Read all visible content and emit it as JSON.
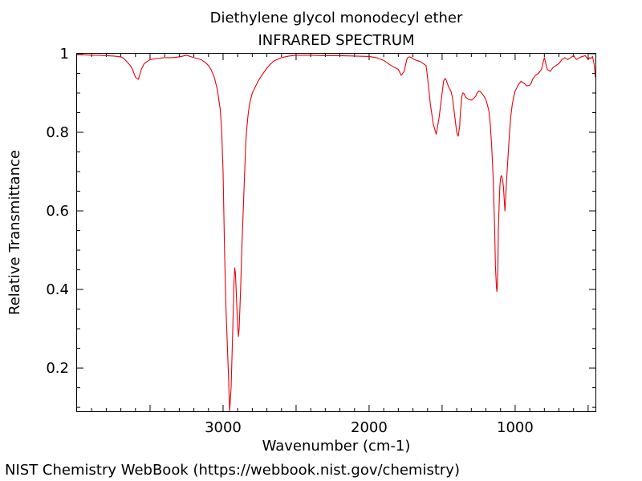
{
  "footer": "NIST Chemistry WebBook (https://webbook.nist.gov/chemistry)",
  "chart_data": {
    "type": "line",
    "title": "Diethylene glycol monodecyl ether",
    "subtitle": "INFRARED SPECTRUM",
    "xlabel": "Wavenumber (cm-1)",
    "ylabel": "Relative Transmittance",
    "xlim": [
      4000,
      450
    ],
    "ylim": [
      0.09,
      1.0
    ],
    "x_reversed": true,
    "x_ticks": [
      3000,
      2000,
      1000
    ],
    "y_ticks": [
      0.2,
      0.4,
      0.6,
      0.8,
      1
    ],
    "y_tick_labels": [
      "0.2",
      "0.4",
      "0.6",
      "0.8",
      "1"
    ],
    "grid": false,
    "line_color": "#e8000b",
    "series": [
      {
        "x": [
          4000,
          3950,
          3900,
          3850,
          3800,
          3750,
          3720,
          3700,
          3680,
          3660,
          3640,
          3620,
          3600,
          3580,
          3560,
          3540,
          3500,
          3450,
          3400,
          3350,
          3300,
          3250,
          3200,
          3150,
          3120,
          3100,
          3080,
          3060,
          3040,
          3020,
          3010,
          3000,
          2990,
          2980,
          2970,
          2962,
          2955,
          2945,
          2935,
          2925,
          2920,
          2915,
          2905,
          2900,
          2895,
          2890,
          2880,
          2870,
          2860,
          2855,
          2850,
          2845,
          2840,
          2830,
          2820,
          2800,
          2780,
          2760,
          2740,
          2720,
          2700,
          2680,
          2650,
          2600,
          2550,
          2500,
          2400,
          2300,
          2200,
          2100,
          2000,
          1950,
          1900,
          1850,
          1800,
          1780,
          1760,
          1745,
          1740,
          1735,
          1725,
          1710,
          1690,
          1650,
          1610,
          1600,
          1580,
          1560,
          1540,
          1520,
          1500,
          1490,
          1480,
          1475,
          1470,
          1465,
          1455,
          1440,
          1430,
          1420,
          1410,
          1400,
          1390,
          1380,
          1375,
          1370,
          1365,
          1360,
          1355,
          1350,
          1340,
          1320,
          1300,
          1290,
          1280,
          1270,
          1260,
          1250,
          1240,
          1230,
          1220,
          1210,
          1200,
          1190,
          1180,
          1170,
          1160,
          1150,
          1140,
          1135,
          1130,
          1128,
          1125,
          1122,
          1118,
          1115,
          1110,
          1105,
          1100,
          1095,
          1090,
          1085,
          1080,
          1075,
          1070,
          1065,
          1060,
          1050,
          1040,
          1030,
          1020,
          1010,
          1000,
          980,
          960,
          940,
          920,
          900,
          890,
          880,
          860,
          840,
          820,
          810,
          800,
          790,
          780,
          760,
          740,
          720,
          700,
          680,
          660,
          640,
          620,
          600,
          580,
          560,
          540,
          520,
          500,
          490,
          480,
          470,
          460,
          450
        ],
        "y": [
          0.997,
          0.997,
          0.996,
          0.996,
          0.995,
          0.994,
          0.993,
          0.992,
          0.988,
          0.98,
          0.972,
          0.96,
          0.94,
          0.935,
          0.96,
          0.975,
          0.985,
          0.988,
          0.99,
          0.99,
          0.992,
          0.996,
          0.99,
          0.985,
          0.977,
          0.97,
          0.958,
          0.94,
          0.91,
          0.86,
          0.81,
          0.7,
          0.5,
          0.35,
          0.25,
          0.17,
          0.09,
          0.15,
          0.28,
          0.42,
          0.455,
          0.44,
          0.35,
          0.31,
          0.28,
          0.3,
          0.4,
          0.52,
          0.62,
          0.67,
          0.72,
          0.77,
          0.8,
          0.84,
          0.87,
          0.9,
          0.915,
          0.93,
          0.942,
          0.953,
          0.963,
          0.972,
          0.982,
          0.99,
          0.994,
          0.996,
          0.996,
          0.995,
          0.995,
          0.994,
          0.993,
          0.99,
          0.983,
          0.97,
          0.96,
          0.945,
          0.955,
          0.98,
          0.988,
          0.99,
          0.992,
          0.99,
          0.985,
          0.98,
          0.97,
          0.94,
          0.87,
          0.82,
          0.795,
          0.84,
          0.9,
          0.93,
          0.937,
          0.935,
          0.93,
          0.925,
          0.915,
          0.905,
          0.89,
          0.86,
          0.83,
          0.8,
          0.79,
          0.815,
          0.85,
          0.87,
          0.89,
          0.9,
          0.9,
          0.898,
          0.89,
          0.884,
          0.882,
          0.884,
          0.888,
          0.892,
          0.9,
          0.905,
          0.904,
          0.9,
          0.895,
          0.89,
          0.882,
          0.87,
          0.855,
          0.82,
          0.76,
          0.68,
          0.55,
          0.46,
          0.42,
          0.405,
          0.395,
          0.41,
          0.46,
          0.55,
          0.61,
          0.66,
          0.683,
          0.69,
          0.686,
          0.678,
          0.66,
          0.63,
          0.6,
          0.632,
          0.67,
          0.73,
          0.79,
          0.84,
          0.87,
          0.89,
          0.905,
          0.92,
          0.93,
          0.925,
          0.918,
          0.92,
          0.925,
          0.935,
          0.945,
          0.95,
          0.96,
          0.975,
          0.99,
          0.975,
          0.96,
          0.955,
          0.965,
          0.97,
          0.975,
          0.985,
          0.99,
          0.985,
          0.99,
          0.995,
          0.985,
          0.99,
          0.993,
          0.995,
          0.985,
          0.99,
          0.988,
          0.993,
          0.975,
          0.94
        ]
      }
    ]
  }
}
